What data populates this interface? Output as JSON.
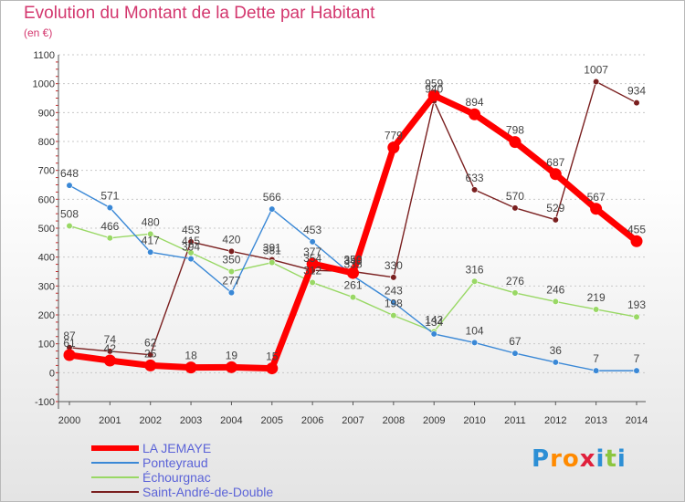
{
  "header": {
    "title": "Evolution du Montant de la Dette par Habitant",
    "unit": "(en €)"
  },
  "brand": {
    "name": "Proxiti",
    "letters": [
      {
        "char": "P",
        "color": "#2d8fd5"
      },
      {
        "char": "r",
        "color": "#ff8a00"
      },
      {
        "char": "o",
        "color": "#ff8a00"
      },
      {
        "char": "x",
        "color": "#e0203c"
      },
      {
        "char": "i",
        "color": "#2d8fd5"
      },
      {
        "char": "t",
        "color": "#8cc63f"
      },
      {
        "char": "i",
        "color": "#2d8fd5"
      }
    ]
  },
  "chart_data": {
    "type": "line",
    "title": "Evolution du Montant de la Dette par Habitant",
    "ylabel": "(en €)",
    "x": [
      "2000",
      "2001",
      "2002",
      "2003",
      "2004",
      "2005",
      "2006",
      "2007",
      "2008",
      "2009",
      "2010",
      "2011",
      "2012",
      "2013",
      "2014"
    ],
    "ylim": [
      -100,
      1100
    ],
    "yticks": [
      "-100",
      "0",
      "100",
      "200",
      "300",
      "400",
      "500",
      "600",
      "700",
      "800",
      "900",
      "1000",
      "1100"
    ],
    "grid": "horizontal dashed",
    "legend_position": "bottom-left",
    "series": [
      {
        "name": "Saint-André-de-Double",
        "color": "#7a1f1f",
        "values": [
          87,
          74,
          62,
          453,
          420,
          391,
          354,
          350,
          330,
          940,
          633,
          570,
          529,
          1007,
          934
        ],
        "labels": [
          "87",
          "74",
          "62",
          "453",
          "420",
          "391",
          "354",
          "350",
          "330",
          "940",
          "633",
          "570",
          "529",
          "1007",
          "934"
        ]
      },
      {
        "name": "Échourgnac",
        "color": "#99d865",
        "values": [
          508,
          466,
          480,
          415,
          350,
          381,
          312,
          261,
          198,
          142,
          316,
          276,
          246,
          219,
          193
        ],
        "labels": [
          "508",
          "466",
          "480",
          "415",
          "350",
          "381",
          "312",
          "261",
          "198",
          "142",
          "316",
          "276",
          "246",
          "219",
          "193"
        ]
      },
      {
        "name": "Ponteyraud",
        "color": "#3a88d6",
        "values": [
          648,
          571,
          417,
          394,
          277,
          566,
          453,
          335,
          243,
          134,
          104,
          67,
          36,
          7,
          7
        ],
        "labels": [
          "648",
          "571",
          "417",
          "394",
          "277",
          "566",
          "453",
          "335",
          "243",
          "134",
          "104",
          "67",
          "36",
          "7",
          "7"
        ]
      },
      {
        "name": "LA JEMAYE",
        "color": "#ff0000",
        "values": [
          61,
          42,
          25,
          18,
          19,
          15,
          377,
          345,
          779,
          959,
          894,
          798,
          687,
          567,
          455
        ],
        "labels": [
          "61",
          "42",
          "25",
          "18",
          "19",
          "15",
          "377",
          "345",
          "779",
          "959",
          "894",
          "798",
          "687",
          "567",
          "455"
        ]
      }
    ],
    "legend": [
      {
        "name": "LA JEMAYE",
        "color": "#ff0000",
        "thickness": 6
      },
      {
        "name": "Ponteyraud",
        "color": "#3a88d6",
        "thickness": 2
      },
      {
        "name": "Échourgnac",
        "color": "#99d865",
        "thickness": 2
      },
      {
        "name": "Saint-André-de-Double",
        "color": "#7a1f1f",
        "thickness": 2
      }
    ]
  }
}
